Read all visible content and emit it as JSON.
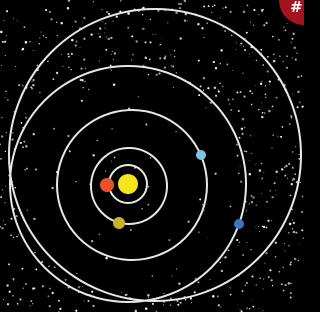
{
  "badge": {
    "label": "#"
  }
}
